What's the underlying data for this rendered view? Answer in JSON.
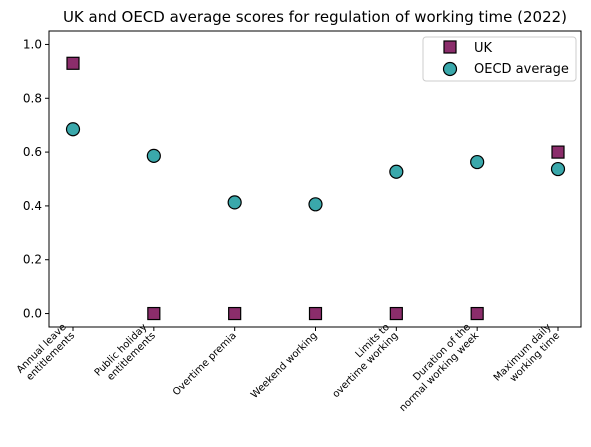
{
  "chart_data": {
    "type": "scatter",
    "title": "UK and OECD average scores for regulation of working time (2022)",
    "xlabel": "",
    "ylabel": "",
    "categories": [
      [
        "Annual leave",
        "entitlements"
      ],
      [
        "Public holiday",
        "entitlements"
      ],
      [
        "Overtime premia"
      ],
      [
        "Weekend working"
      ],
      [
        "Limits to",
        "overtime working"
      ],
      [
        "Duration of the",
        "normal working week"
      ],
      [
        "Maximum daily",
        "working time"
      ]
    ],
    "ylim": [
      -0.05,
      1.05
    ],
    "yticks": [
      "0.0",
      "0.2",
      "0.4",
      "0.6",
      "0.8",
      "1.0"
    ],
    "grid": false,
    "legend_position": "top-right",
    "series": [
      {
        "name": "UK",
        "marker": "square",
        "color": "#8b2d6b",
        "values": [
          0.93,
          0.0,
          0.0,
          0.0,
          0.0,
          0.0,
          0.6
        ]
      },
      {
        "name": "OECD average",
        "marker": "circle",
        "color": "#3aa8ab",
        "values": [
          0.685,
          0.586,
          0.413,
          0.406,
          0.527,
          0.563,
          0.537
        ]
      }
    ]
  }
}
